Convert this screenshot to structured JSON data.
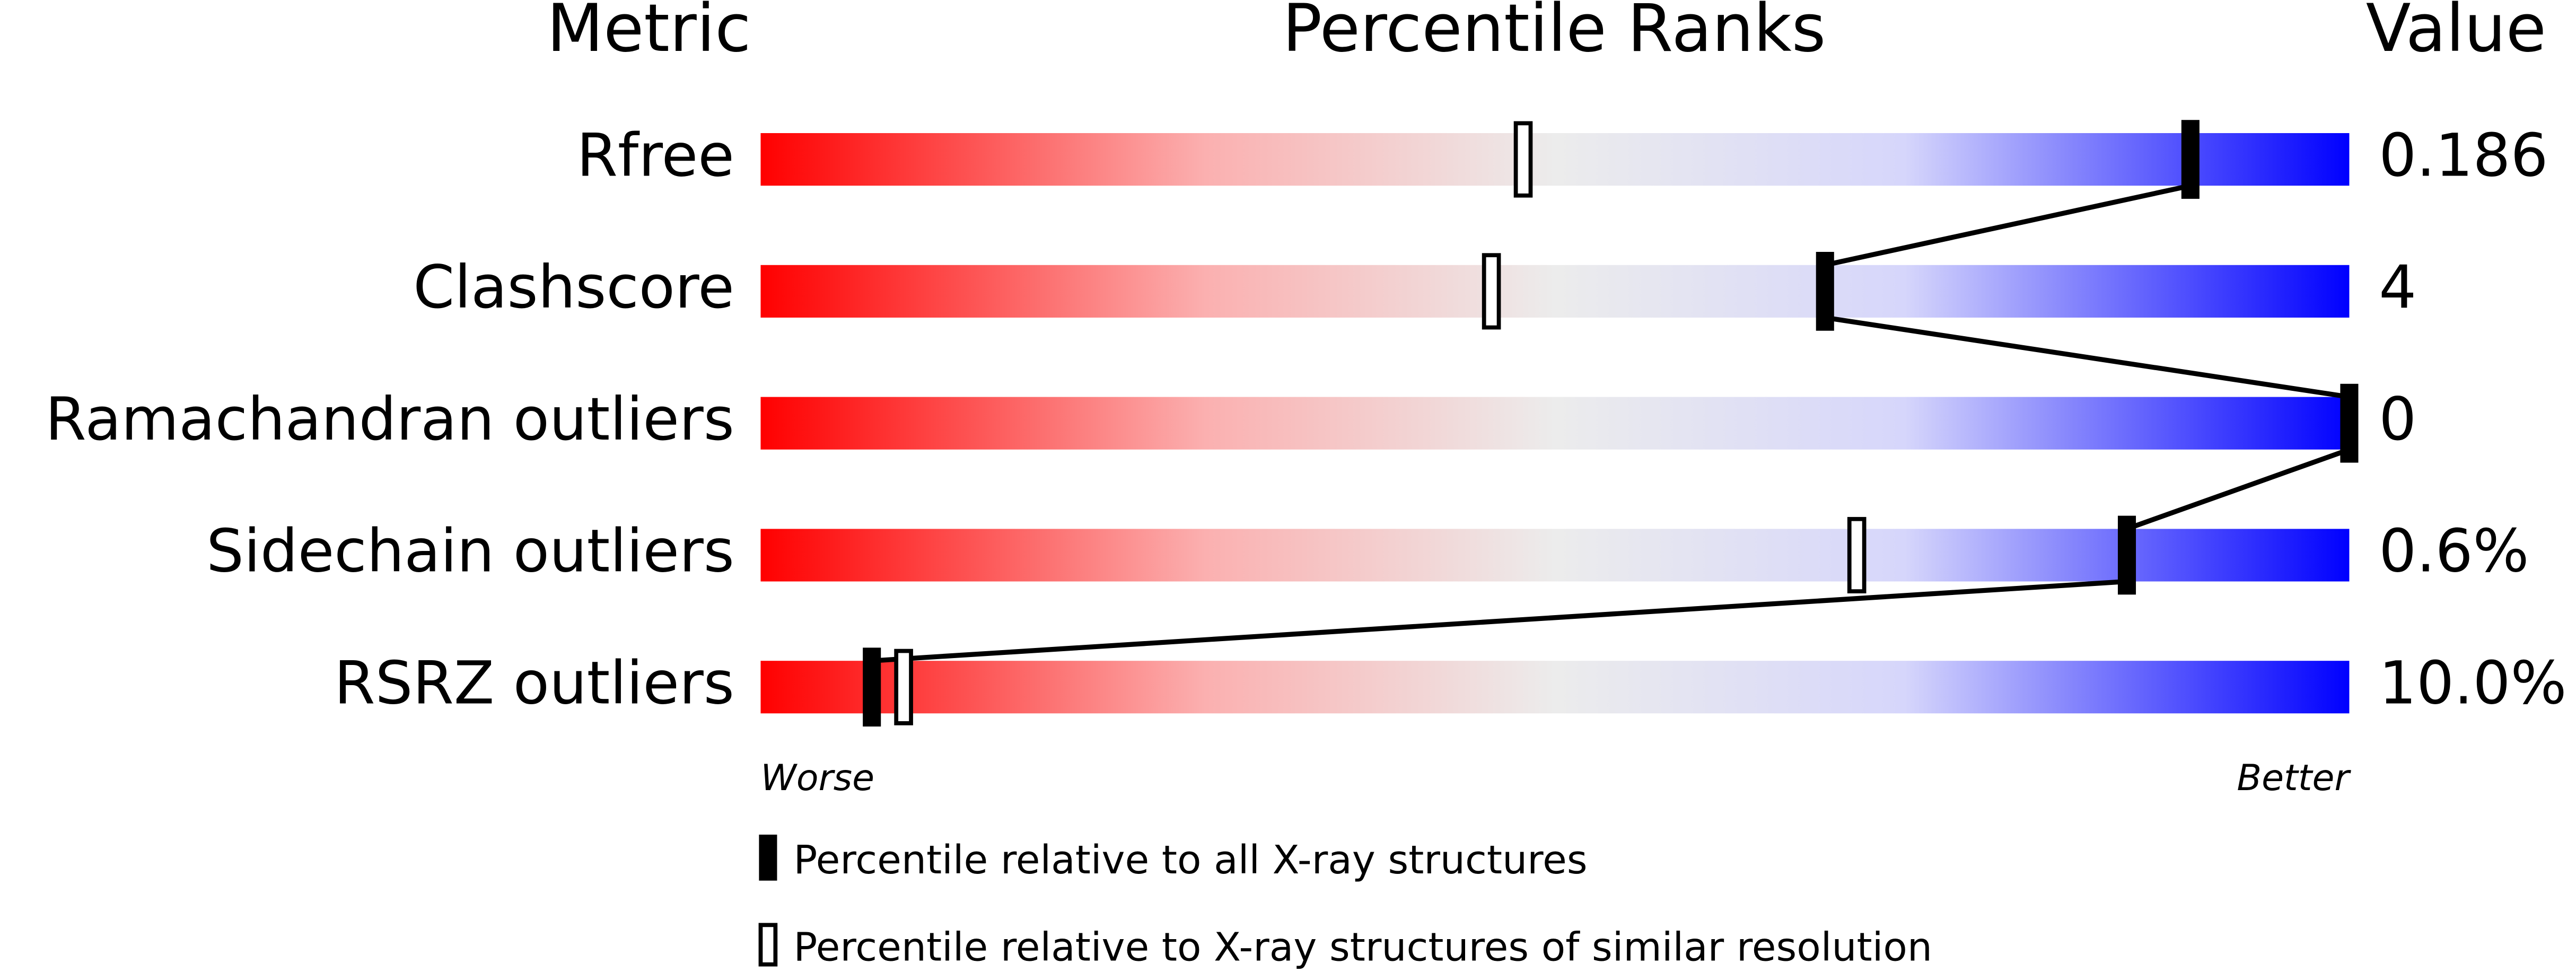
{
  "chart_data": {
    "type": "slider",
    "title": "Percentile Ranks",
    "metric_header": "Metric",
    "value_header": "Value",
    "categories": [
      "Rfree",
      "Clashscore",
      "Ramachandran outliers",
      "Sidechain outliers",
      "RSRZ outliers"
    ],
    "metric_values": [
      "0.186",
      "4",
      "0",
      "0.6%",
      "10.0%"
    ],
    "xlim": [
      0,
      100
    ],
    "low_label": "Worse",
    "high_label": "Better",
    "series": [
      {
        "name": "Percentile relative to all X-ray structures",
        "style": "filled",
        "color": "#000000",
        "values": [
          90,
          67,
          100,
          86,
          7
        ]
      },
      {
        "name": "Percentile relative to X-ray structures of similar resolution",
        "style": "open",
        "color": "#000000",
        "values": [
          48,
          46,
          null,
          69,
          9
        ]
      }
    ]
  }
}
